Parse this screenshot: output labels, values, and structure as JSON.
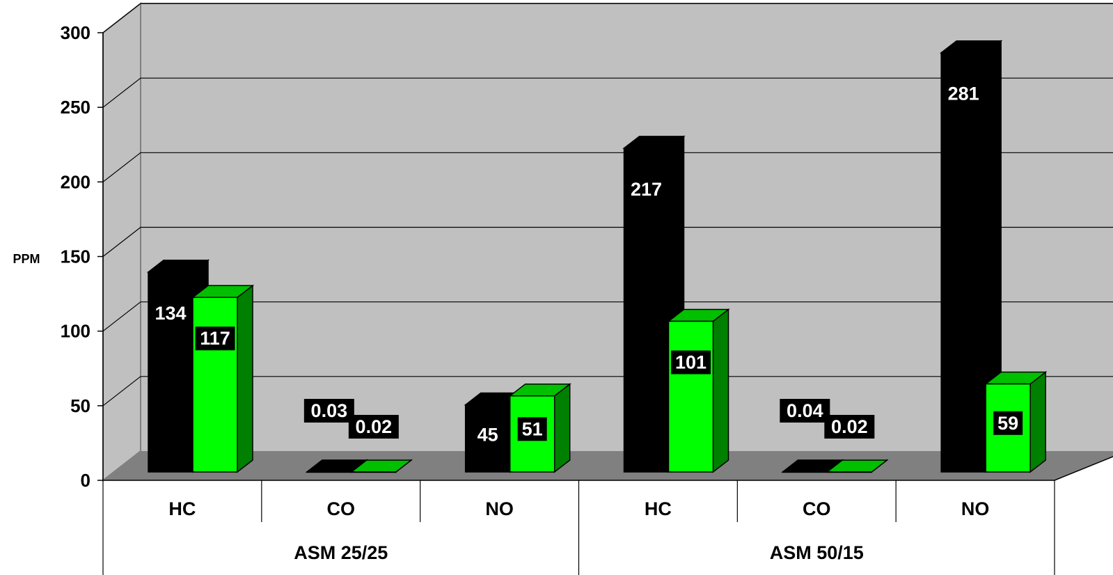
{
  "chart_data": {
    "type": "bar",
    "ylabel": "PPM",
    "ylim": [
      0,
      300
    ],
    "y_ticks": [
      "0",
      "50",
      "100",
      "150",
      "200",
      "250",
      "300"
    ],
    "grid": true,
    "style": "3d-clustered",
    "groups": [
      {
        "label": "ASM 25/25",
        "categories": [
          {
            "label": "HC",
            "values": [
              134,
              117
            ],
            "value_labels": [
              "134",
              "117"
            ]
          },
          {
            "label": "CO",
            "values": [
              0.03,
              0.02
            ],
            "value_labels": [
              "0.03",
              "0.02"
            ]
          },
          {
            "label": "NO",
            "values": [
              45,
              51
            ],
            "value_labels": [
              "45",
              "51"
            ]
          }
        ]
      },
      {
        "label": "ASM 50/15",
        "categories": [
          {
            "label": "HC",
            "values": [
              217,
              101
            ],
            "value_labels": [
              "217",
              "101"
            ]
          },
          {
            "label": "CO",
            "values": [
              0.04,
              0.02
            ],
            "value_labels": [
              "0.04",
              "0.02"
            ]
          },
          {
            "label": "NO",
            "values": [
              281,
              59
            ],
            "value_labels": [
              "281",
              "59"
            ]
          }
        ]
      }
    ],
    "series_colors": [
      "#000000",
      "#00ff00"
    ],
    "series_side_colors": [
      "#000000",
      "#008000"
    ],
    "series_top_colors": [
      "#000000",
      "#00c000"
    ],
    "label_box_colors": [
      "none",
      "#000000"
    ]
  }
}
